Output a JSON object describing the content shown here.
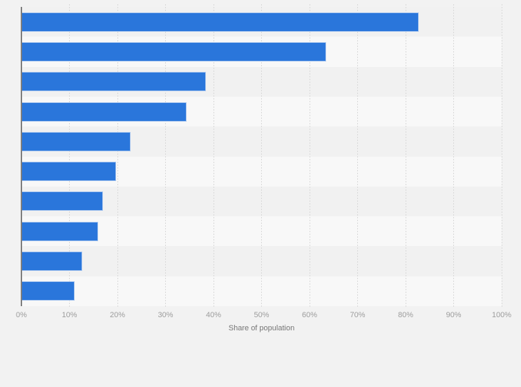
{
  "page": {
    "background_color": "#f2f2f2"
  },
  "chart_data": {
    "type": "bar",
    "orientation": "horizontal",
    "title": "",
    "xlabel": "Share of population",
    "ylabel": "",
    "categories": [
      "",
      "",
      "",
      "",
      "",
      "",
      "",
      "",
      "",
      ""
    ],
    "values": [
      82.7,
      63.5,
      38.4,
      34.4,
      22.8,
      19.7,
      17.0,
      16.0,
      12.7,
      11.1
    ],
    "xlim": [
      0,
      100
    ],
    "x_ticks": [
      "0%",
      "10%",
      "20%",
      "30%",
      "40%",
      "50%",
      "60%",
      "70%",
      "80%",
      "90%",
      "100%"
    ],
    "grid": "vertical-dashed",
    "legend": "none",
    "colors": {
      "bar_fill": "#2a76db",
      "bar_border": "#aac7ef",
      "stripe_dark": "#f1f1f1",
      "stripe_light": "#f8f8f8",
      "gridline": "#d8d8d8",
      "axis_line": "#7d7d7d",
      "tick_label": "#9c9c9c",
      "axis_title": "#757575"
    }
  }
}
